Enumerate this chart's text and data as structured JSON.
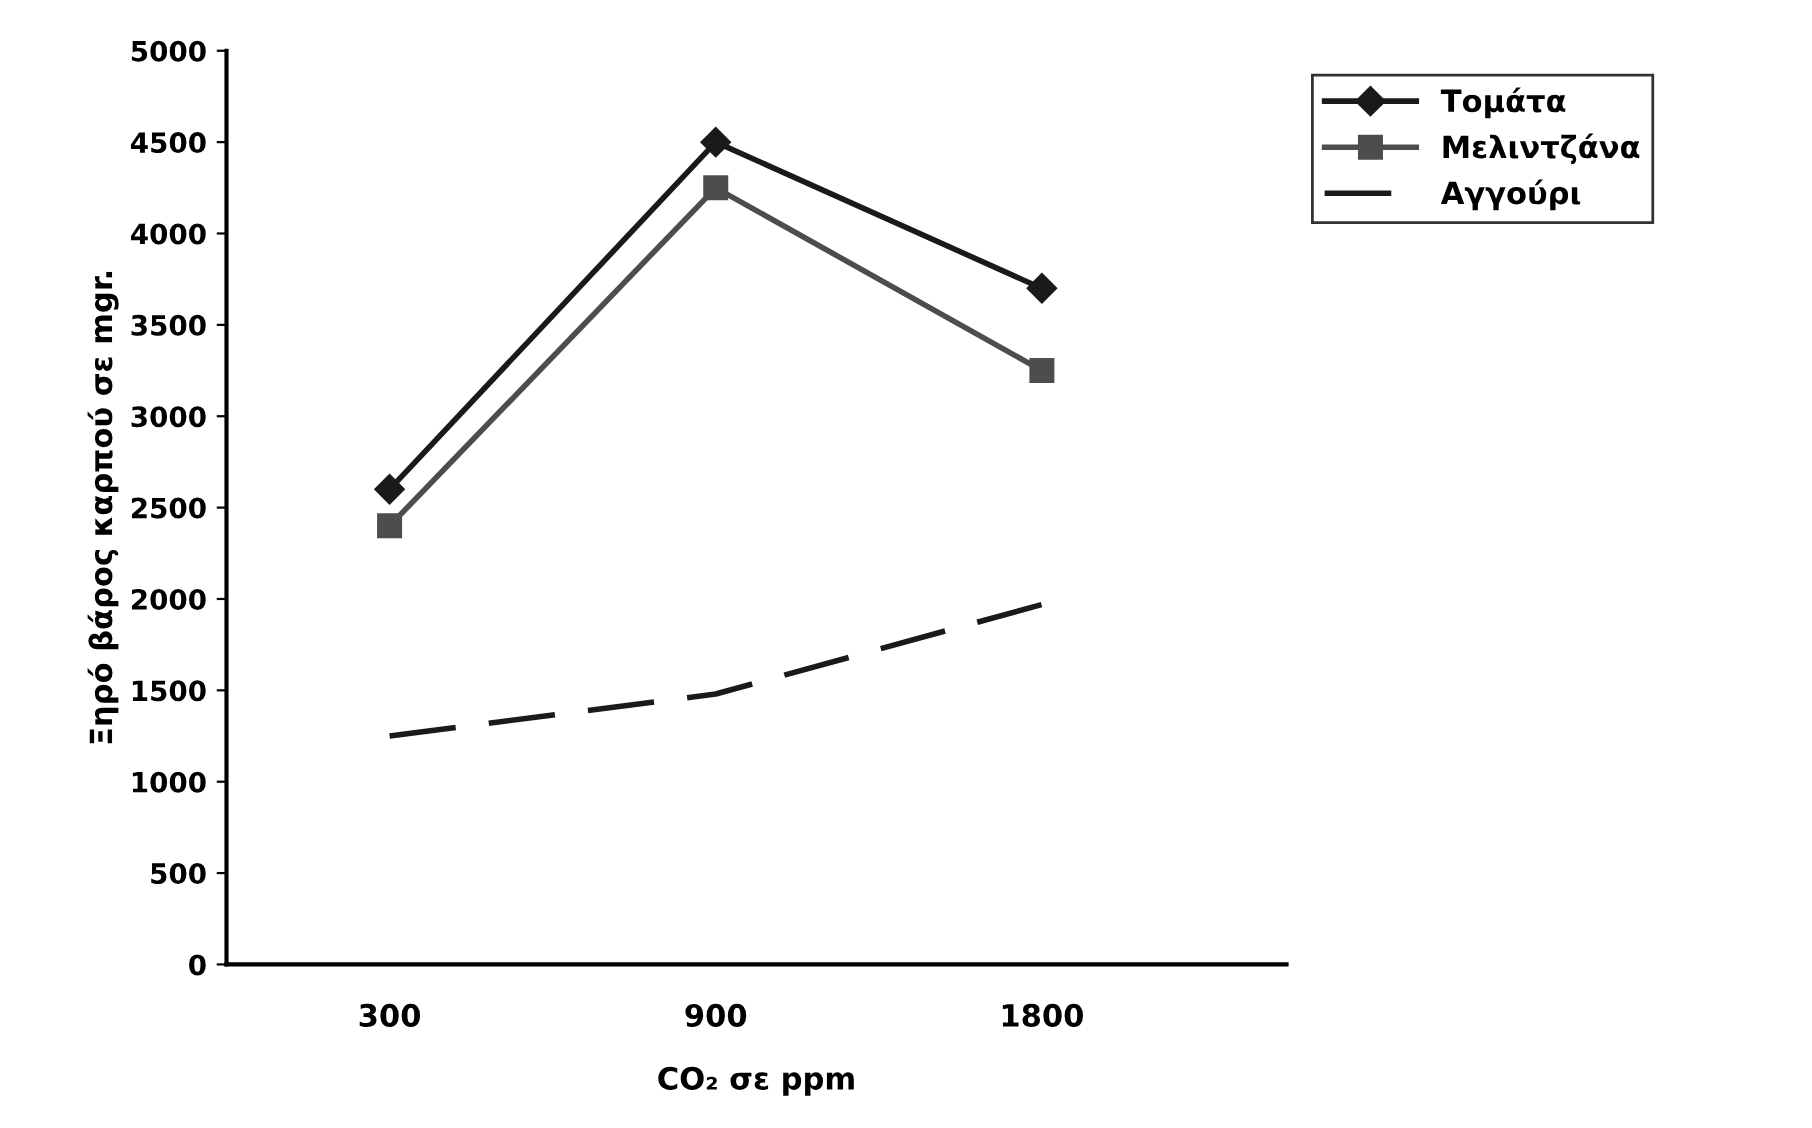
{
  "chart_data": {
    "type": "line",
    "xlabel": "CO₂ σε ppm",
    "ylabel": "Ξηρό βάρος καρπού σε mgr.",
    "categories": [
      "300",
      "900",
      "1800"
    ],
    "series": [
      {
        "name": "Τομάτα",
        "color": "#1a1a1a",
        "marker": "diamond",
        "line_style": "solid",
        "values": [
          2600,
          4500,
          3700
        ]
      },
      {
        "name": "Μελιντζάνα",
        "color": "#4d4d4d",
        "marker": "square",
        "line_style": "solid",
        "values": [
          2400,
          4250,
          3250
        ]
      },
      {
        "name": "Αγγούρι",
        "color": "#1a1a1a",
        "marker": "none",
        "line_style": "dashed",
        "values": [
          1250,
          1480,
          1970
        ]
      }
    ],
    "ylim": [
      0,
      5000
    ],
    "yticks": [
      0,
      500,
      1000,
      1500,
      2000,
      2500,
      3000,
      3500,
      4000,
      4500,
      5000
    ],
    "grid": false,
    "legend": "top right"
  }
}
